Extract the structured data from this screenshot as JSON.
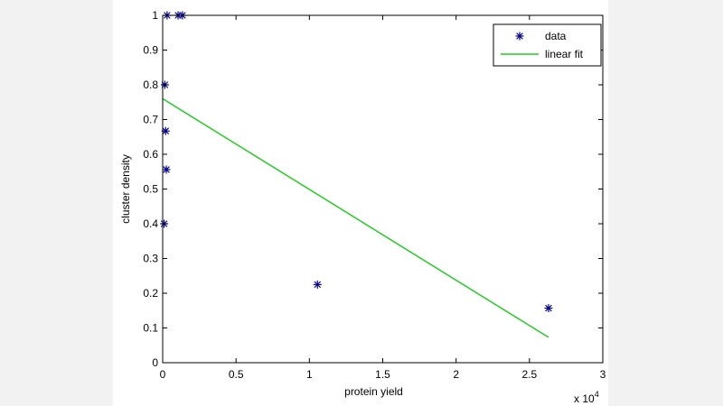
{
  "chart_data": {
    "type": "scatter",
    "xlabel": "protein yield",
    "ylabel": "cluster density",
    "xlim": [
      0,
      30000
    ],
    "ylim": [
      0,
      1
    ],
    "x_multiplier_label": "x 10",
    "x_multiplier_exponent": "4",
    "x_ticks": [
      0,
      5000,
      10000,
      15000,
      20000,
      25000,
      30000
    ],
    "x_tick_labels": [
      "0",
      "0.5",
      "1",
      "1.5",
      "2",
      "2.5",
      "3"
    ],
    "y_ticks": [
      0,
      0.1,
      0.2,
      0.3,
      0.4,
      0.5,
      0.6,
      0.7,
      0.8,
      0.9,
      1
    ],
    "y_tick_labels": [
      "0",
      "0.1",
      "0.2",
      "0.3",
      "0.4",
      "0.5",
      "0.6",
      "0.7",
      "0.8",
      "0.9",
      "1"
    ],
    "grid": false,
    "legend_position": "top-right",
    "series": [
      {
        "name": "data",
        "type": "scatter",
        "marker": "*",
        "color": "#00008b",
        "points": [
          {
            "x": 100,
            "y": 0.4
          },
          {
            "x": 150,
            "y": 0.8
          },
          {
            "x": 200,
            "y": 0.667
          },
          {
            "x": 250,
            "y": 0.556
          },
          {
            "x": 300,
            "y": 1.0
          },
          {
            "x": 1050,
            "y": 1.0
          },
          {
            "x": 1350,
            "y": 1.0
          },
          {
            "x": 10550,
            "y": 0.225
          },
          {
            "x": 26300,
            "y": 0.157
          }
        ]
      },
      {
        "name": "linear fit",
        "type": "line",
        "color": "#22cc22",
        "points": [
          {
            "x": 0,
            "y": 0.76
          },
          {
            "x": 26300,
            "y": 0.073
          }
        ]
      }
    ]
  }
}
